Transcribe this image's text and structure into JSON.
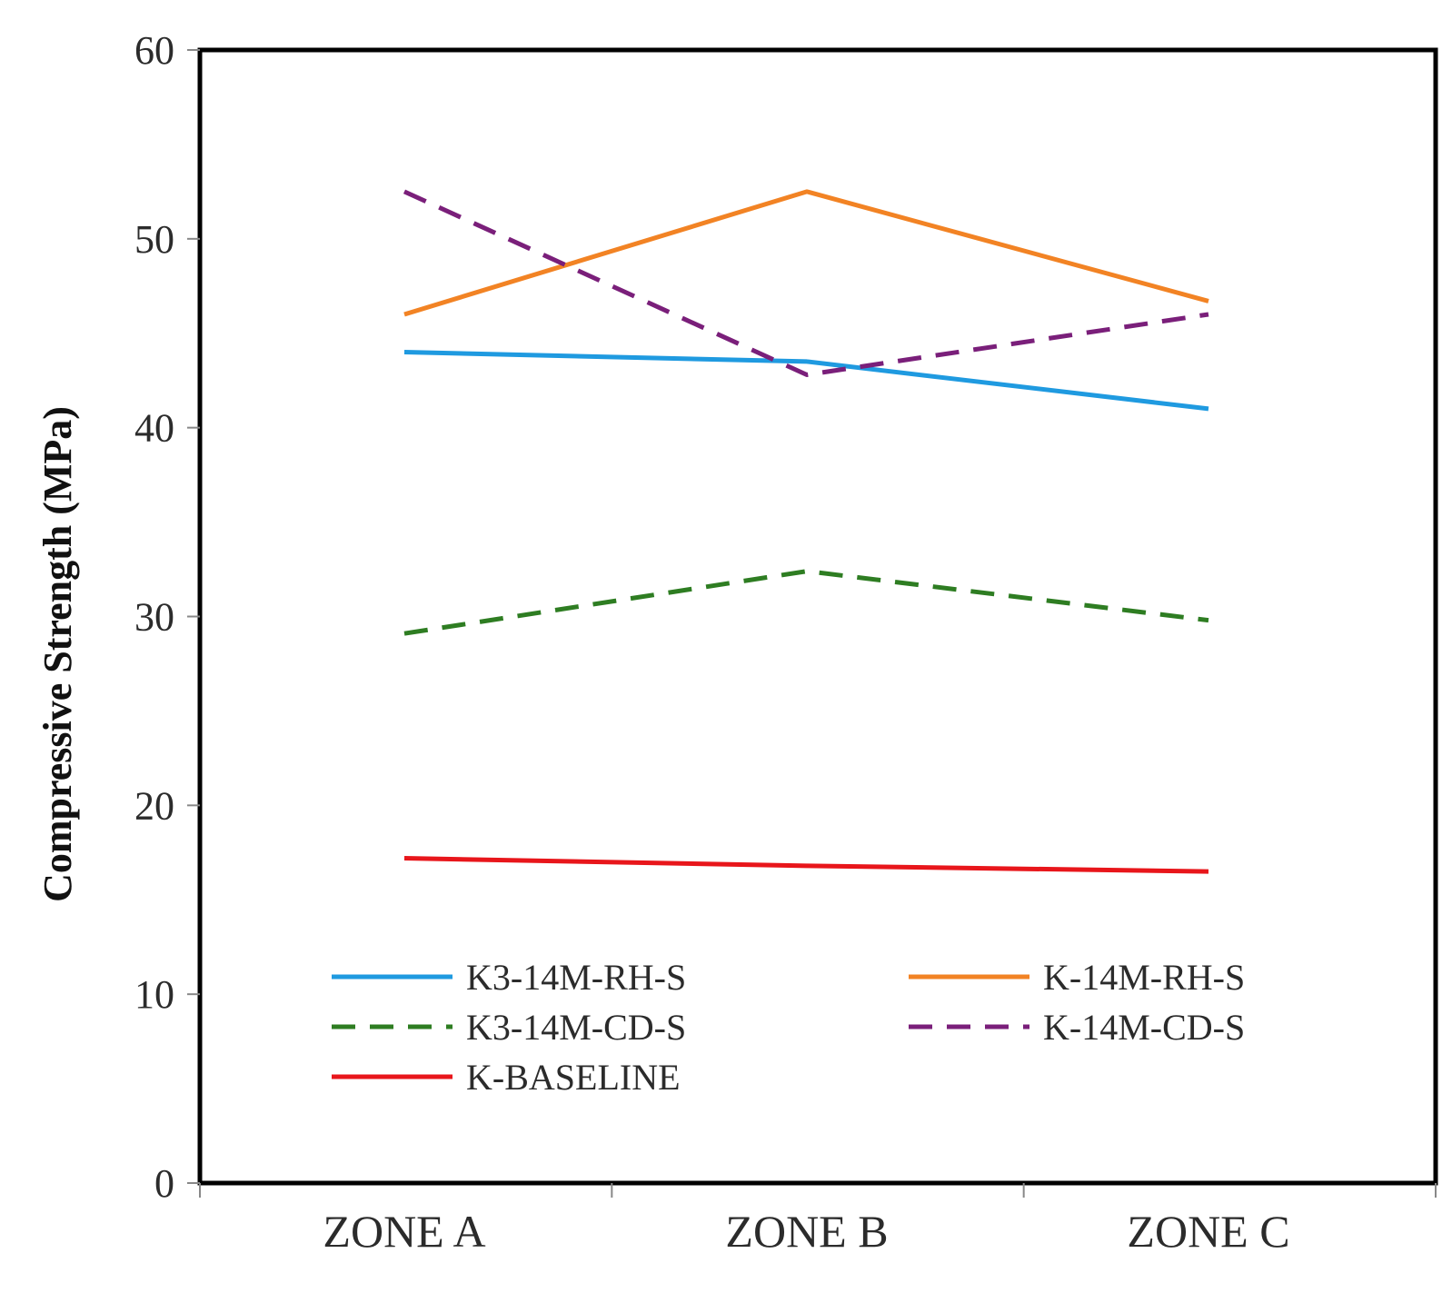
{
  "chart_data": {
    "type": "line",
    "title": "",
    "xlabel": "",
    "ylabel": "Compressive Strength (MPa)",
    "categories": [
      "ZONE A",
      "ZONE B",
      "ZONE C"
    ],
    "ylim": [
      0,
      60
    ],
    "yticks": [
      0,
      10,
      20,
      30,
      40,
      50,
      60
    ],
    "grid": false,
    "legend_position": "bottom-inside",
    "series": [
      {
        "name": "K3-14M-RH-S",
        "values": [
          44.0,
          43.5,
          41.0
        ],
        "color": "#1f9ae0",
        "style": "solid"
      },
      {
        "name": "K-14M-RH-S",
        "values": [
          46.0,
          52.5,
          46.7
        ],
        "color": "#f28324",
        "style": "solid"
      },
      {
        "name": "K3-14M-CD-S",
        "values": [
          29.1,
          32.4,
          29.8
        ],
        "color": "#2e7d22",
        "style": "dashed"
      },
      {
        "name": "K-14M-CD-S",
        "values": [
          52.5,
          42.8,
          46.0
        ],
        "color": "#7a1f7a",
        "style": "dashed"
      },
      {
        "name": "K-BASELINE",
        "values": [
          17.2,
          16.8,
          16.5
        ],
        "color": "#e8161b",
        "style": "solid"
      }
    ]
  }
}
